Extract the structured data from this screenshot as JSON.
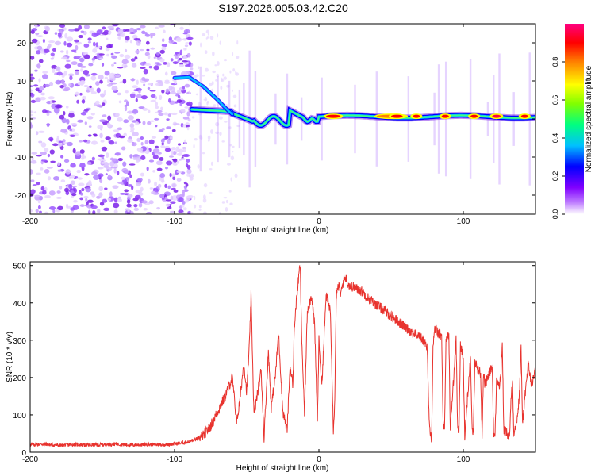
{
  "title": "S197.2026.005.03.42.C20",
  "chart_data": [
    {
      "type": "heatmap",
      "name": "spectrogram",
      "xlabel": "Height of straight line (km)",
      "ylabel": "Frequency (Hz)",
      "xlim": [
        -200,
        150
      ],
      "ylim": [
        -25,
        25
      ],
      "xticks": [
        -200,
        -100,
        0,
        100
      ],
      "yticks": [
        -20,
        -10,
        0,
        10,
        20
      ],
      "colorbar": {
        "label": "Normalized spectral amplitude",
        "range": [
          0,
          1
        ],
        "ticks": [
          0.0,
          0.2,
          0.4,
          0.6,
          0.8
        ],
        "colors": [
          "#ffffff",
          "#c080ff",
          "#8000ff",
          "#0000ff",
          "#00c0ff",
          "#00ff80",
          "#80ff00",
          "#ffff00",
          "#ff8000",
          "#ff0000",
          "#ff0080"
        ]
      },
      "features": [
        {
          "label": "noise region",
          "x": [
            -200,
            -90
          ],
          "y": [
            -25,
            25
          ]
        },
        {
          "label": "main signal track",
          "x": [
            -90,
            150
          ],
          "y_center": 0.8
        }
      ]
    },
    {
      "type": "line",
      "name": "snr",
      "xlabel": "Height of straight line (km)",
      "ylabel": "SNR (10 * v/v)",
      "xlim": [
        -200,
        150
      ],
      "ylim": [
        0,
        510
      ],
      "xticks": [
        -200,
        -100,
        0,
        100
      ],
      "yticks": [
        0,
        100,
        200,
        300,
        400,
        500
      ],
      "color": "#e8332e",
      "series": [
        {
          "name": "SNR",
          "x": [
            -200,
            -190,
            -180,
            -170,
            -160,
            -150,
            -140,
            -130,
            -120,
            -110,
            -100,
            -90,
            -85,
            -80,
            -75,
            -70,
            -65,
            -60,
            -57,
            -55,
            -52,
            -50,
            -48,
            -47,
            -45,
            -42,
            -40,
            -38,
            -35,
            -33,
            -30,
            -28,
            -26,
            -25,
            -22,
            -20,
            -18,
            -17,
            -15,
            -13,
            -12,
            -10,
            -8,
            -5,
            -3,
            -1,
            0,
            2,
            5,
            8,
            10,
            11,
            12,
            14,
            15,
            17,
            19,
            20,
            25,
            30,
            35,
            40,
            45,
            50,
            55,
            60,
            65,
            70,
            75,
            76,
            77,
            78,
            79,
            80,
            85,
            86,
            87,
            88,
            90,
            91,
            95,
            96,
            97,
            98,
            100,
            101,
            105,
            106,
            107,
            108,
            112,
            113,
            114,
            115,
            120,
            121,
            122,
            123,
            125,
            126,
            127,
            128,
            132,
            133,
            134,
            135,
            138,
            139,
            140,
            141,
            145,
            147,
            149,
            150
          ],
          "y": [
            20,
            22,
            18,
            21,
            19,
            20,
            22,
            19,
            21,
            20,
            22,
            28,
            35,
            45,
            70,
            110,
            150,
            200,
            80,
            130,
            240,
            160,
            300,
            420,
            100,
            170,
            220,
            40,
            270,
            120,
            210,
            320,
            180,
            110,
            60,
            230,
            180,
            340,
            430,
            505,
            320,
            100,
            380,
            420,
            340,
            80,
            300,
            180,
            420,
            380,
            60,
            140,
            420,
            450,
            420,
            460,
            470,
            450,
            440,
            430,
            410,
            395,
            380,
            365,
            350,
            335,
            320,
            310,
            285,
            120,
            50,
            30,
            280,
            330,
            310,
            80,
            50,
            300,
            315,
            60,
            300,
            80,
            50,
            290,
            250,
            40,
            260,
            70,
            50,
            240,
            210,
            40,
            220,
            180,
            230,
            50,
            40,
            190,
            180,
            200,
            300,
            60,
            40,
            140,
            200,
            50,
            110,
            170,
            280,
            80,
            240,
            180,
            200,
            240
          ]
        }
      ]
    }
  ]
}
